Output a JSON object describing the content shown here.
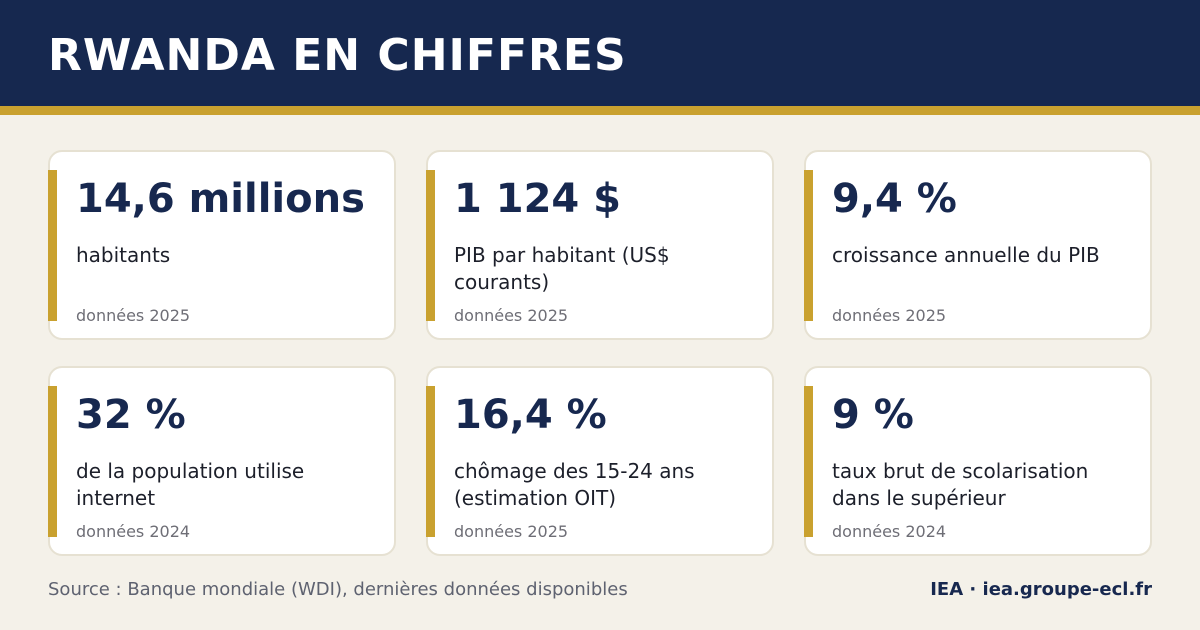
{
  "header": {
    "title": "RWANDA EN CHIFFRES"
  },
  "cards": [
    {
      "value": "14,6 millions",
      "label": "habitants",
      "note": "données 2025"
    },
    {
      "value": "1 124 $",
      "label": "PIB par habitant (US$ courants)",
      "note": "données 2025"
    },
    {
      "value": "9,4 %",
      "label": "croissance annuelle du PIB",
      "note": "données 2025"
    },
    {
      "value": "32 %",
      "label": "de la population utilise internet",
      "note": "données 2024"
    },
    {
      "value": "16,4 %",
      "label": "chômage des 15-24 ans (estimation OIT)",
      "note": "données 2025"
    },
    {
      "value": "9 %",
      "label": "taux brut de scolarisation dans le supérieur",
      "note": "données 2024"
    }
  ],
  "footer": {
    "source": "Source : Banque mondiale (WDI), dernières données disponibles",
    "brand": "IEA · iea.groupe-ecl.fr"
  },
  "colors": {
    "navy": "#16284f",
    "gold": "#c9a12f",
    "background": "#f4f1e9",
    "card": "#ffffff"
  }
}
